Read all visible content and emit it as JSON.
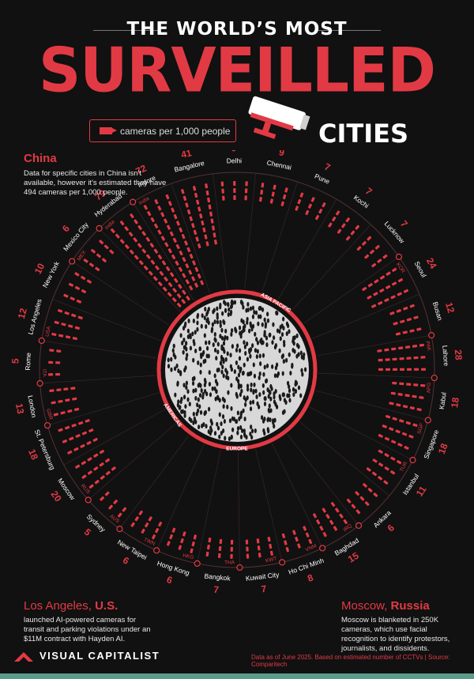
{
  "header": {
    "line1": "THE WORLD’S MOST",
    "line2": "SURVEILLED",
    "line3": "CITIES",
    "legend_label": "cameras per 1,000 people"
  },
  "notes": {
    "china": {
      "title": "China",
      "body": "Data for specific cities in China isn't available, however it's estimated they have 494 cameras per 1,000 people."
    },
    "la": {
      "title_prefix": "Los Angeles, ",
      "title_bold": "U.S.",
      "body": "launched AI-powered cameras for transit and parking violations under an $11M contract with Hayden AI."
    },
    "moscow": {
      "title_prefix": "Moscow, ",
      "title_bold": "Russia",
      "body": "Moscow is blanketed in 250K cameras, which use facial recognition to identify protestors, journalists, and dissidents."
    }
  },
  "footer": {
    "brand": "VISUAL CAPITALIST",
    "source": "Data as of June 2025. Based on estimated number of CCTVs | Source: Comparitech"
  },
  "colors": {
    "accent": "#e23a44",
    "background": "#111111"
  },
  "chart_data": {
    "type": "radial-bar",
    "regions": [
      "ASIA PACIFIC",
      "AMERICAS",
      "EUROPE"
    ],
    "country_groups": [
      {
        "code": "India",
        "cities": [
          "Indore",
          "Bangalore",
          "Delhi",
          "Chennai",
          "Pune",
          "Kochi",
          "Lucknow"
        ]
      },
      {
        "code": "KOR",
        "cities": [
          "Seoul",
          "Busan"
        ]
      },
      {
        "code": "PAK",
        "cities": [
          "Lahore"
        ]
      },
      {
        "code": "AFG",
        "cities": [
          "Kabul"
        ]
      },
      {
        "code": "SGP",
        "cities": [
          "Singapore"
        ]
      },
      {
        "code": "TUR",
        "cities": [
          "Istanbul",
          "Ankara"
        ]
      },
      {
        "code": "IRQ",
        "cities": [
          "Baghdad"
        ]
      },
      {
        "code": "VNM",
        "cities": [
          "Ho Chi Minh"
        ]
      },
      {
        "code": "KWT",
        "cities": [
          "Kuwait City"
        ]
      },
      {
        "code": "THA",
        "cities": [
          "Bangkok"
        ]
      },
      {
        "code": "HKG",
        "cities": [
          "Hong Kong"
        ]
      },
      {
        "code": "TWN",
        "cities": [
          "New Taipei"
        ]
      },
      {
        "code": "AUS",
        "cities": [
          "Sydney"
        ]
      },
      {
        "code": "RUS",
        "cities": [
          "Moscow",
          "St. Petersburg"
        ]
      },
      {
        "code": "GBR",
        "cities": [
          "London"
        ]
      },
      {
        "code": "ITA",
        "cities": [
          "Rome"
        ]
      },
      {
        "code": "USA",
        "cities": [
          "Los Angeles",
          "New York"
        ]
      },
      {
        "code": "MEX",
        "cities": [
          "Mexico City"
        ]
      },
      {
        "code": "India",
        "cities": [
          "Hyderabad"
        ]
      }
    ],
    "cities": [
      {
        "name": "Delhi",
        "value": 9
      },
      {
        "name": "Chennai",
        "value": 9
      },
      {
        "name": "Pune",
        "value": 7
      },
      {
        "name": "Kochi",
        "value": 7
      },
      {
        "name": "Lucknow",
        "value": 7
      },
      {
        "name": "Seoul",
        "value": 24
      },
      {
        "name": "Busan",
        "value": 12
      },
      {
        "name": "Lahore",
        "value": 28
      },
      {
        "name": "Kabul",
        "value": 18
      },
      {
        "name": "Singapore",
        "value": 18
      },
      {
        "name": "Istanbul",
        "value": 11
      },
      {
        "name": "Ankara",
        "value": 6
      },
      {
        "name": "Baghdad",
        "value": 15
      },
      {
        "name": "Ho Chi Minh",
        "value": 8
      },
      {
        "name": "Kuwait City",
        "value": 7
      },
      {
        "name": "Bangkok",
        "value": 7
      },
      {
        "name": "Hong Kong",
        "value": 6
      },
      {
        "name": "New Taipei",
        "value": 6
      },
      {
        "name": "Sydney",
        "value": 5
      },
      {
        "name": "Moscow",
        "value": 20
      },
      {
        "name": "St. Petersburg",
        "value": 18
      },
      {
        "name": "London",
        "value": 13
      },
      {
        "name": "Rome",
        "value": 5
      },
      {
        "name": "Los Angeles",
        "value": 12
      },
      {
        "name": "New York",
        "value": 10
      },
      {
        "name": "Mexico City",
        "value": 6
      },
      {
        "name": "Hyderabad",
        "value": 79
      },
      {
        "name": "Indore",
        "value": 72
      },
      {
        "name": "Bangalore",
        "value": 41
      }
    ]
  }
}
